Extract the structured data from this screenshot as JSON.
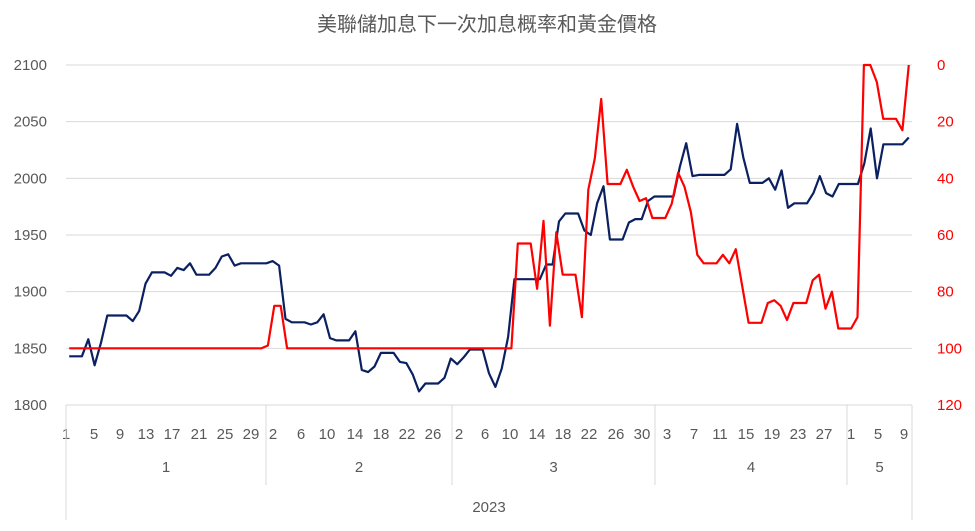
{
  "chart_data": {
    "type": "line",
    "title": "美聯儲加息下一次加息概率和黃金價格",
    "y_left": {
      "ticks": [
        "1800",
        "1850",
        "1900",
        "1950",
        "2000",
        "2050",
        "2100"
      ],
      "range": [
        1800,
        2100
      ]
    },
    "y_right": {
      "ticks": [
        "0",
        "20",
        "40",
        "60",
        "80",
        "100",
        "120"
      ],
      "range": [
        0,
        120
      ],
      "inverted": true
    },
    "x_day_labels": [
      "1",
      "5",
      "9",
      "13",
      "17",
      "21",
      "25",
      "29",
      "2",
      "6",
      "10",
      "14",
      "18",
      "22",
      "26",
      "2",
      "6",
      "10",
      "14",
      "18",
      "22",
      "26",
      "30",
      "3",
      "7",
      "11",
      "15",
      "19",
      "23",
      "27",
      "1",
      "5",
      "9"
    ],
    "months": [
      "1",
      "2",
      "3",
      "4",
      "5"
    ],
    "year": "2023",
    "colors": {
      "gold": "#0b2060",
      "probability": "#ff0000"
    },
    "series": [
      {
        "axis": "left",
        "values": [
          1843,
          1843,
          1843,
          1858,
          1835,
          1855,
          1879,
          1879,
          1879,
          1879,
          1874,
          1883,
          1907,
          1917,
          1917,
          1917,
          1914,
          1921,
          1919,
          1925,
          1915,
          1915,
          1915,
          1921,
          1931,
          1933,
          1923,
          1925,
          1925,
          1925,
          1925,
          1925,
          1927,
          1923,
          1876,
          1873,
          1873,
          1873,
          1871,
          1873,
          1880,
          1859,
          1857,
          1857,
          1857,
          1865,
          1831,
          1829,
          1834,
          1846,
          1846,
          1846,
          1838,
          1837,
          1827,
          1812,
          1819,
          1819,
          1819,
          1824,
          1841,
          1836,
          1842,
          1849,
          1849,
          1849,
          1828,
          1816,
          1832,
          1860,
          1911,
          1911,
          1911,
          1911,
          1911,
          1924,
          1924,
          1962,
          1969,
          1969,
          1969,
          1954,
          1950,
          1978,
          1993,
          1946,
          1946,
          1946,
          1961,
          1964,
          1964,
          1980,
          1984,
          1984,
          1984,
          1984,
          2010,
          2031,
          2002,
          2003,
          2003,
          2003,
          2003,
          2003,
          2008,
          2048,
          2018,
          1996,
          1996,
          1996,
          2000,
          1990,
          2007,
          1974,
          1978,
          1978,
          1978,
          1987,
          2002,
          1987,
          1984,
          1995,
          1995,
          1995,
          1995,
          2013,
          2044,
          2000,
          2030,
          2030,
          2030,
          2030,
          2036
        ]
      },
      {
        "axis": "right",
        "values": [
          100,
          100,
          100,
          100,
          100,
          100,
          100,
          100,
          100,
          100,
          100,
          100,
          100,
          100,
          100,
          100,
          100,
          100,
          100,
          100,
          100,
          100,
          100,
          100,
          100,
          100,
          100,
          100,
          100,
          100,
          100,
          99,
          85,
          85,
          100,
          100,
          100,
          100,
          100,
          100,
          100,
          100,
          100,
          100,
          100,
          100,
          100,
          100,
          100,
          100,
          100,
          100,
          100,
          100,
          100,
          100,
          100,
          100,
          100,
          100,
          100,
          100,
          100,
          100,
          100,
          100,
          100,
          100,
          100,
          100,
          63,
          63,
          63,
          79,
          55,
          92,
          59,
          74,
          74,
          74,
          89,
          44,
          33,
          12,
          42,
          42,
          42,
          37,
          43,
          48,
          47,
          54,
          54,
          54,
          49,
          38,
          43,
          52,
          67,
          70,
          70,
          70,
          67,
          70,
          65,
          78,
          91,
          91,
          91,
          84,
          83,
          85,
          90,
          84,
          84,
          84,
          76,
          74,
          86,
          80,
          93,
          93,
          93,
          89,
          0,
          0,
          6,
          19,
          19,
          19,
          23,
          0
        ]
      }
    ]
  }
}
